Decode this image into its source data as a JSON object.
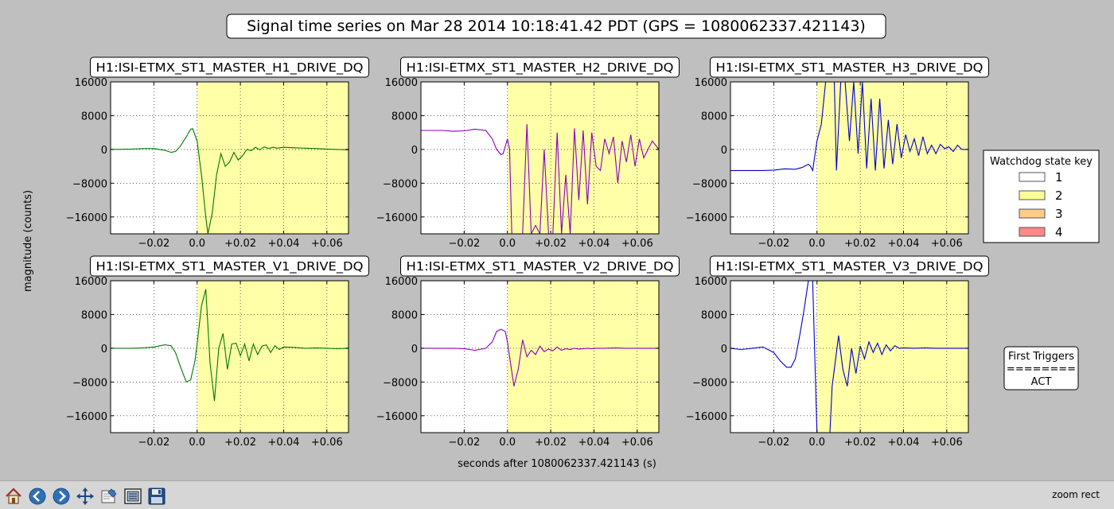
{
  "figure": {
    "title": "Signal time series on Mar 28 2014 10:18:41.42 PDT (GPS = 1080062337.421143)",
    "ylabel": "magnitude (counts)",
    "xlabel": "seconds after 1080062337.421143 (s)",
    "colors": {
      "background": "#bfbfbf",
      "state2": "#ffffa8",
      "state3": "#ffcc88",
      "state4": "#ff8888"
    }
  },
  "watchdog_legend": {
    "title": "Watchdog state key",
    "items": [
      {
        "label": "1",
        "color": "#ffffff"
      },
      {
        "label": "2",
        "color": "#ffff99"
      },
      {
        "label": "3",
        "color": "#ffcc88"
      },
      {
        "label": "4",
        "color": "#ff8888"
      }
    ]
  },
  "first_triggers": {
    "title": "First Triggers",
    "separator": "========",
    "value": "ACT"
  },
  "chart_data": [
    {
      "type": "line",
      "title": "H1:ISI-ETMX_ST1_MASTER_H1_DRIVE_DQ",
      "color": "#007700",
      "xlim": [
        -0.04,
        0.07
      ],
      "ylim": [
        -20000,
        16000
      ],
      "xticks": [
        -0.02,
        0.0,
        0.02,
        0.04,
        0.06
      ],
      "xticklabels": [
        "−0.02",
        "0.0",
        "+0.02",
        "+0.04",
        "+0.06"
      ],
      "yticks": [
        16000,
        8000,
        0,
        -8000,
        -16000
      ],
      "yticklabels": [
        "16000",
        "8000",
        "0",
        "−8000",
        "−16000"
      ],
      "shade": {
        "start": 0.0,
        "state": "2"
      },
      "x": [
        -0.04,
        -0.03,
        -0.025,
        -0.02,
        -0.015,
        -0.012,
        -0.01,
        -0.008,
        -0.005,
        -0.003,
        -0.002,
        0.0,
        0.002,
        0.004,
        0.005,
        0.007,
        0.009,
        0.011,
        0.013,
        0.015,
        0.017,
        0.019,
        0.021,
        0.023,
        0.025,
        0.027,
        0.029,
        0.031,
        0.033,
        0.035,
        0.037,
        0.04,
        0.045,
        0.05,
        0.055,
        0.06,
        0.065,
        0.07
      ],
      "y": [
        0,
        100,
        200,
        200,
        -200,
        -700,
        -500,
        600,
        3000,
        4800,
        4900,
        2000,
        -6000,
        -16000,
        -20000,
        -15000,
        -6000,
        -1000,
        -4000,
        -3000,
        -700,
        -2500,
        -1500,
        0,
        -300,
        500,
        -100,
        600,
        200,
        500,
        300,
        500,
        400,
        300,
        200,
        100,
        0,
        -100
      ]
    },
    {
      "type": "line",
      "title": "H1:ISI-ETMX_ST1_MASTER_H2_DRIVE_DQ",
      "color": "#8800bb",
      "xlim": [
        -0.04,
        0.07
      ],
      "ylim": [
        -20000,
        16000
      ],
      "xticks": [
        -0.02,
        0.0,
        0.02,
        0.04,
        0.06
      ],
      "xticklabels": [
        "−0.02",
        "0.0",
        "+0.02",
        "+0.04",
        "+0.06"
      ],
      "yticks": [
        16000,
        8000,
        0,
        -8000,
        -16000
      ],
      "yticklabels": [
        "16000",
        "8000",
        "0",
        "−8000",
        "−16000"
      ],
      "shade": {
        "start": 0.0,
        "state": "2"
      },
      "x": [
        -0.04,
        -0.03,
        -0.025,
        -0.02,
        -0.015,
        -0.01,
        -0.007,
        -0.005,
        -0.003,
        -0.002,
        0.0,
        0.001,
        0.002,
        0.003,
        0.005,
        0.007,
        0.009,
        0.011,
        0.013,
        0.015,
        0.017,
        0.019,
        0.021,
        0.023,
        0.025,
        0.027,
        0.029,
        0.031,
        0.033,
        0.035,
        0.037,
        0.039,
        0.041,
        0.043,
        0.045,
        0.047,
        0.049,
        0.051,
        0.053,
        0.055,
        0.057,
        0.059,
        0.061,
        0.063,
        0.065,
        0.067,
        0.07
      ],
      "y": [
        4500,
        4500,
        4300,
        4400,
        4800,
        4500,
        2500,
        0,
        -1200,
        -1000,
        2500,
        0,
        -20000,
        -20000,
        -20000,
        -20000,
        6000,
        -20000,
        -18000,
        -20000,
        0,
        -20000,
        -20000,
        4000,
        -20000,
        -6000,
        -20000,
        5000,
        -12000,
        4500,
        -13000,
        4000,
        -4000,
        -5000,
        2500,
        -1000,
        3000,
        -8000,
        2000,
        -3000,
        3500,
        -4000,
        2500,
        -2000,
        0,
        2000,
        0
      ]
    },
    {
      "type": "line",
      "title": "H1:ISI-ETMX_ST1_MASTER_H3_DRIVE_DQ",
      "color": "#0000cc",
      "xlim": [
        -0.04,
        0.07
      ],
      "ylim": [
        -20000,
        16000
      ],
      "xticks": [
        -0.02,
        0.0,
        0.02,
        0.04,
        0.06
      ],
      "xticklabels": [
        "−0.02",
        "0.0",
        "+0.02",
        "+0.04",
        "+0.06"
      ],
      "yticks": [
        16000,
        8000,
        0,
        -8000,
        -16000
      ],
      "yticklabels": [
        "16000",
        "8000",
        "0",
        "−8000",
        "−16000"
      ],
      "shade": {
        "start": 0.0,
        "state": "2"
      },
      "x": [
        -0.04,
        -0.03,
        -0.025,
        -0.02,
        -0.015,
        -0.01,
        -0.007,
        -0.004,
        -0.003,
        -0.002,
        0.0,
        0.002,
        0.004,
        0.006,
        0.007,
        0.008,
        0.009,
        0.011,
        0.013,
        0.015,
        0.017,
        0.019,
        0.021,
        0.023,
        0.025,
        0.027,
        0.029,
        0.031,
        0.033,
        0.035,
        0.037,
        0.039,
        0.041,
        0.043,
        0.045,
        0.047,
        0.049,
        0.051,
        0.053,
        0.055,
        0.057,
        0.059,
        0.061,
        0.063,
        0.065,
        0.067,
        0.07
      ],
      "y": [
        -5000,
        -5000,
        -5000,
        -4900,
        -4600,
        -4700,
        -4300,
        -3500,
        -4000,
        -5000,
        2000,
        6000,
        16000,
        16000,
        16000,
        16000,
        -5000,
        16000,
        16000,
        2000,
        16000,
        -1000,
        16000,
        -4500,
        12000,
        -5000,
        12000,
        -4500,
        7000,
        -3500,
        6000,
        -2000,
        3500,
        -500,
        2500,
        -1500,
        3000,
        -1000,
        1000,
        -1000,
        1200,
        200,
        600,
        -500,
        1000,
        0,
        0
      ]
    },
    {
      "type": "line",
      "title": "H1:ISI-ETMX_ST1_MASTER_V1_DRIVE_DQ",
      "color": "#007700",
      "xlim": [
        -0.04,
        0.07
      ],
      "ylim": [
        -20000,
        16000
      ],
      "xticks": [
        -0.02,
        0.0,
        0.02,
        0.04,
        0.06
      ],
      "xticklabels": [
        "−0.02",
        "0.0",
        "+0.02",
        "+0.04",
        "+0.06"
      ],
      "yticks": [
        16000,
        8000,
        0,
        -8000,
        -16000
      ],
      "yticklabels": [
        "16000",
        "8000",
        "0",
        "−8000",
        "−16000"
      ],
      "shade": {
        "start": 0.0,
        "state": "2"
      },
      "x": [
        -0.04,
        -0.03,
        -0.025,
        -0.02,
        -0.015,
        -0.012,
        -0.01,
        -0.008,
        -0.005,
        -0.003,
        -0.001,
        0.0,
        0.002,
        0.004,
        0.006,
        0.008,
        0.01,
        0.012,
        0.014,
        0.016,
        0.018,
        0.02,
        0.022,
        0.024,
        0.026,
        0.028,
        0.03,
        0.032,
        0.034,
        0.036,
        0.038,
        0.04,
        0.045,
        0.05,
        0.055,
        0.06,
        0.065,
        0.07
      ],
      "y": [
        0,
        0,
        100,
        300,
        800,
        600,
        -1000,
        -4000,
        -8000,
        -7500,
        -3000,
        1000,
        10000,
        14000,
        -3500,
        -12500,
        0,
        3500,
        -5000,
        1000,
        1200,
        -1800,
        1000,
        -3000,
        1000,
        -1500,
        500,
        800,
        -1000,
        600,
        -300,
        300,
        200,
        0,
        100,
        0,
        -100,
        0
      ]
    },
    {
      "type": "line",
      "title": "H1:ISI-ETMX_ST1_MASTER_V2_DRIVE_DQ",
      "color": "#8800bb",
      "xlim": [
        -0.04,
        0.07
      ],
      "ylim": [
        -20000,
        16000
      ],
      "xticks": [
        -0.02,
        0.0,
        0.02,
        0.04,
        0.06
      ],
      "xticklabels": [
        "−0.02",
        "0.0",
        "+0.02",
        "+0.04",
        "+0.06"
      ],
      "yticks": [
        16000,
        8000,
        0,
        -8000,
        -16000
      ],
      "yticklabels": [
        "16000",
        "8000",
        "0",
        "−8000",
        "−16000"
      ],
      "shade": {
        "start": 0.0,
        "state": "2"
      },
      "x": [
        -0.04,
        -0.03,
        -0.025,
        -0.02,
        -0.015,
        -0.01,
        -0.007,
        -0.005,
        -0.003,
        -0.001,
        0.0,
        0.001,
        0.003,
        0.005,
        0.007,
        0.009,
        0.011,
        0.013,
        0.015,
        0.017,
        0.019,
        0.021,
        0.023,
        0.025,
        0.027,
        0.029,
        0.031,
        0.033,
        0.035,
        0.037,
        0.039,
        0.041,
        0.045,
        0.05,
        0.055,
        0.06,
        0.065,
        0.07
      ],
      "y": [
        0,
        0,
        0,
        -100,
        -500,
        0,
        1500,
        4000,
        4500,
        4000,
        1500,
        -2000,
        -9000,
        -5000,
        2000,
        -2000,
        -500,
        -1500,
        500,
        -800,
        -200,
        -600,
        300,
        -500,
        -100,
        -300,
        0,
        -200,
        -100,
        0,
        -100,
        0,
        0,
        100,
        0,
        0,
        0,
        0
      ]
    },
    {
      "type": "line",
      "title": "H1:ISI-ETMX_ST1_MASTER_V3_DRIVE_DQ",
      "color": "#0000cc",
      "xlim": [
        -0.04,
        0.07
      ],
      "ylim": [
        -20000,
        16000
      ],
      "xticks": [
        -0.02,
        0.0,
        0.02,
        0.04,
        0.06
      ],
      "xticklabels": [
        "−0.02",
        "0.0",
        "+0.02",
        "+0.04",
        "+0.06"
      ],
      "yticks": [
        16000,
        8000,
        0,
        -8000,
        -16000
      ],
      "yticklabels": [
        "16000",
        "8000",
        "0",
        "−8000",
        "−16000"
      ],
      "shade": {
        "start": 0.0,
        "state": "2"
      },
      "x": [
        -0.04,
        -0.035,
        -0.03,
        -0.025,
        -0.02,
        -0.017,
        -0.014,
        -0.012,
        -0.01,
        -0.008,
        -0.006,
        -0.004,
        -0.002,
        0.0,
        0.002,
        0.004,
        0.006,
        0.007,
        0.008,
        0.01,
        0.012,
        0.014,
        0.016,
        0.018,
        0.02,
        0.022,
        0.024,
        0.026,
        0.028,
        0.03,
        0.032,
        0.034,
        0.036,
        0.038,
        0.04,
        0.045,
        0.05,
        0.055,
        0.06,
        0.065,
        0.07
      ],
      "y": [
        0,
        -300,
        0,
        300,
        -1000,
        -3000,
        -4500,
        -4500,
        -2500,
        3000,
        9000,
        16000,
        16000,
        -20000,
        -20000,
        -20000,
        -20000,
        -9000,
        -5000,
        3000,
        -5000,
        -9000,
        0,
        -6000,
        500,
        -2500,
        1500,
        -1000,
        1200,
        -1500,
        800,
        -600,
        600,
        0,
        100,
        0,
        100,
        0,
        0,
        0,
        0
      ]
    }
  ],
  "toolbar": {
    "buttons": [
      {
        "name": "home-button",
        "icon": "home-icon",
        "title": "Home"
      },
      {
        "name": "back-button",
        "icon": "back-arrow-icon",
        "title": "Back"
      },
      {
        "name": "forward-button",
        "icon": "forward-arrow-icon",
        "title": "Forward"
      },
      {
        "name": "pan-button",
        "icon": "pan-move-icon",
        "title": "Pan"
      },
      {
        "name": "zoom-button",
        "icon": "zoom-rect-icon",
        "title": "Zoom"
      },
      {
        "name": "subplots-button",
        "icon": "subplots-config-icon",
        "title": "Configure subplots"
      },
      {
        "name": "save-button",
        "icon": "save-disk-icon",
        "title": "Save"
      }
    ],
    "status": "zoom rect"
  }
}
